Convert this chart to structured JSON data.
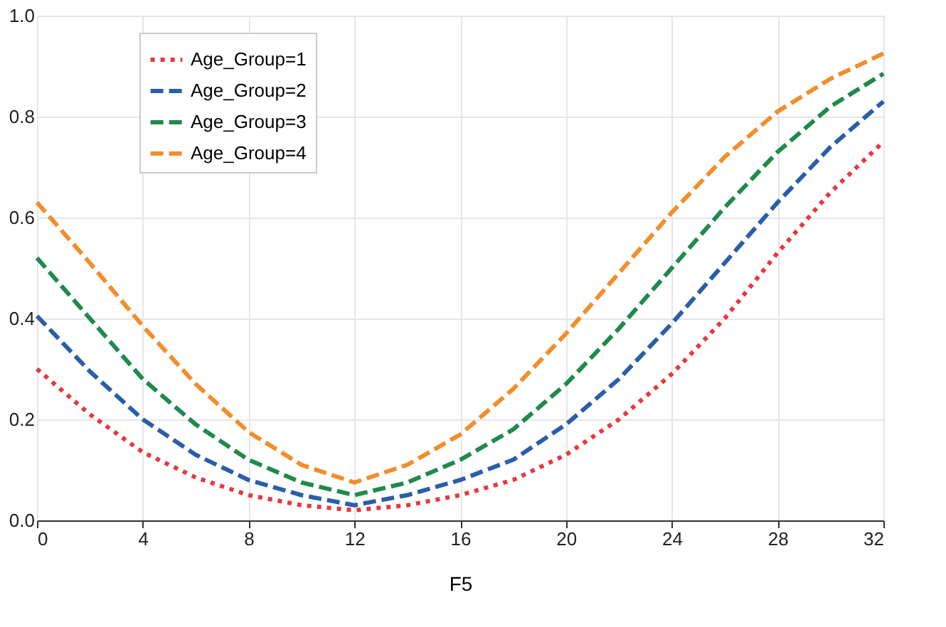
{
  "chart_data": {
    "type": "line",
    "xlabel": "F5",
    "x": [
      0,
      2,
      4,
      6,
      8,
      10,
      12,
      14,
      16,
      18,
      20,
      22,
      24,
      26,
      28,
      30,
      32
    ],
    "xlim": [
      0,
      32
    ],
    "xticks": [
      0,
      4,
      8,
      12,
      16,
      20,
      24,
      28,
      32
    ],
    "ylim": [
      0,
      1
    ],
    "yticks": [
      {
        "value": 0,
        "label": "0.0"
      },
      0.2,
      0.4,
      0.6,
      0.8,
      {
        "value": 1,
        "label": "1.0"
      }
    ],
    "grid": true,
    "legend": "top left",
    "series": [
      {
        "name": "Age_Group=1",
        "color": "#e8383d",
        "line_style": "dotted",
        "values": [
          0.3,
          0.21,
          0.135,
          0.085,
          0.05,
          0.03,
          0.02,
          0.03,
          0.05,
          0.08,
          0.13,
          0.2,
          0.29,
          0.4,
          0.53,
          0.65,
          0.75
        ]
      },
      {
        "name": "Age_Group=2",
        "color": "#2b5ea8",
        "line_style": "dashed",
        "values": [
          0.405,
          0.295,
          0.2,
          0.13,
          0.08,
          0.05,
          0.03,
          0.05,
          0.08,
          0.12,
          0.19,
          0.28,
          0.39,
          0.51,
          0.63,
          0.74,
          0.83
        ]
      },
      {
        "name": "Age_Group=3",
        "color": "#1f8a4c",
        "line_style": "dashed",
        "values": [
          0.52,
          0.4,
          0.28,
          0.19,
          0.12,
          0.075,
          0.05,
          0.075,
          0.12,
          0.18,
          0.27,
          0.38,
          0.5,
          0.62,
          0.73,
          0.82,
          0.885
        ]
      },
      {
        "name": "Age_Group=4",
        "color": "#f28e2b",
        "line_style": "dashed",
        "values": [
          0.63,
          0.51,
          0.385,
          0.27,
          0.175,
          0.11,
          0.075,
          0.11,
          0.17,
          0.26,
          0.37,
          0.49,
          0.61,
          0.72,
          0.81,
          0.875,
          0.925
        ]
      }
    ]
  }
}
